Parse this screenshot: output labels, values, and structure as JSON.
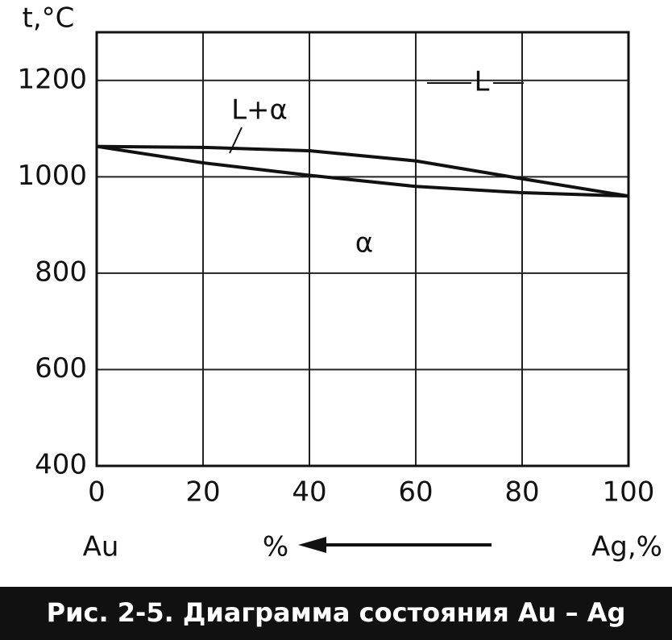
{
  "chart_data": {
    "type": "line",
    "ylabel": "t,°C",
    "axis_notes": [
      "Au",
      "%",
      "Ag,%"
    ],
    "annotations": [
      "L",
      "L+α",
      "α"
    ],
    "caption": "Рис. 2-5. Диаграмма состояния Au – Ag",
    "x": [
      0,
      20,
      40,
      60,
      80,
      100
    ],
    "series": [
      {
        "color": "#111111",
        "values": [
          1063,
          1061,
          1054,
          1033,
          996,
          960
        ]
      },
      {
        "color": "#111111",
        "values": [
          1063,
          1029,
          1003,
          980,
          967,
          960
        ]
      }
    ],
    "xlim": [
      0,
      100
    ],
    "xticks": [
      0,
      20,
      40,
      60,
      80,
      100
    ],
    "ylim": [
      400,
      1300
    ],
    "yticks": [
      400,
      600,
      800,
      1000,
      1200
    ],
    "grid": true
  }
}
